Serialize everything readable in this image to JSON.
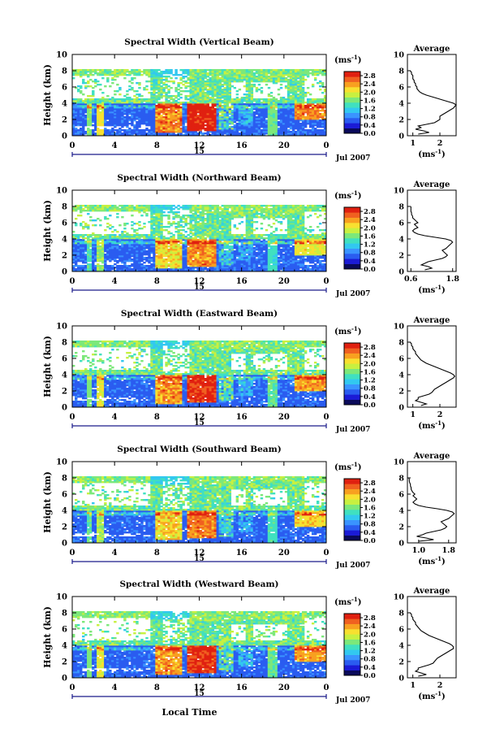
{
  "figure": {
    "xaxis_label": "Local Time",
    "date_label": "Jul 2007",
    "day_label": "15",
    "colorbar_unit_base": "(ms",
    "colorbar_unit_exp": "-1",
    "colorbar_unit_close": ")"
  },
  "chart_data": [
    {
      "type": "heatmap",
      "title": "Spectral Width (Vertical Beam)",
      "ylabel": "Height (km)",
      "xlabel": "Local Time",
      "x_ticks": [
        "0",
        "4",
        "8",
        "12",
        "16",
        "20",
        "0"
      ],
      "y_ticks": [
        "0",
        "2",
        "4",
        "6",
        "8",
        "10"
      ],
      "xlim": [
        0,
        24
      ],
      "ylim": [
        0,
        10
      ],
      "colorbar": {
        "unit": "(ms-1)",
        "ticks": [
          "0.0",
          "0.4",
          "0.8",
          "1.2",
          "1.6",
          "2.0",
          "2.4",
          "2.8"
        ],
        "range": [
          0,
          3.0
        ],
        "colors": [
          "#0a0a5a",
          "#1b1bd6",
          "#2a5cf0",
          "#3a94ff",
          "#32c8f0",
          "#40e0c0",
          "#7ce87a",
          "#c8f040",
          "#f8e030",
          "#f8a020",
          "#f06020",
          "#e02010"
        ]
      },
      "profile": {
        "title": "Average",
        "xlabel": "(ms-1)",
        "x_ticks": [
          "1",
          "2"
        ],
        "x_tick_values": [
          1,
          2
        ],
        "xlim": [
          0.8,
          2.6
        ],
        "ylim": [
          0,
          10
        ],
        "heights": [
          0.2,
          0.4,
          0.6,
          0.8,
          1.0,
          1.2,
          1.4,
          1.6,
          1.8,
          2.0,
          2.2,
          2.4,
          2.6,
          2.8,
          3.0,
          3.2,
          3.4,
          3.6,
          3.8,
          4.0,
          4.2,
          4.4,
          4.6,
          4.8,
          5.0,
          5.2,
          5.4,
          5.6,
          5.8,
          6.0,
          6.2,
          6.4,
          6.6,
          6.8,
          7.0,
          7.2,
          7.4,
          7.6,
          7.8,
          8.0
        ],
        "values": [
          1.2,
          1.6,
          1.4,
          1.1,
          1.3,
          1.2,
          1.5,
          1.8,
          1.9,
          2.0,
          2.0,
          2.0,
          2.1,
          2.2,
          2.3,
          2.4,
          2.5,
          2.55,
          2.6,
          2.5,
          2.3,
          2.1,
          1.9,
          1.7,
          1.5,
          1.35,
          1.25,
          1.2,
          1.15,
          1.15,
          1.1,
          1.1,
          1.05,
          1.05,
          1.0,
          1.0,
          1.0,
          0.95,
          0.95,
          0.9
        ]
      }
    },
    {
      "type": "heatmap",
      "title": "Spectral Width (Northward Beam)",
      "ylabel": "Height (km)",
      "xlabel": "Local Time",
      "x_ticks": [
        "0",
        "4",
        "8",
        "12",
        "16",
        "20",
        "0"
      ],
      "y_ticks": [
        "0",
        "2",
        "4",
        "6",
        "8",
        "10"
      ],
      "xlim": [
        0,
        24
      ],
      "ylim": [
        0,
        10
      ],
      "colorbar": {
        "unit": "(ms-1)",
        "ticks": [
          "0.0",
          "0.4",
          "0.8",
          "1.2",
          "1.6",
          "2.0",
          "2.4",
          "2.8"
        ],
        "range": [
          0,
          3.0
        ],
        "colors": [
          "#0a0a5a",
          "#1b1bd6",
          "#2a5cf0",
          "#3a94ff",
          "#32c8f0",
          "#40e0c0",
          "#7ce87a",
          "#c8f040",
          "#f8e030",
          "#f8a020",
          "#f06020",
          "#e02010"
        ]
      },
      "profile": {
        "title": "Average",
        "xlabel": "(ms-1)",
        "x_ticks": [
          "0.6",
          "1.8"
        ],
        "x_tick_values": [
          0.6,
          1.8
        ],
        "xlim": [
          0.5,
          1.9
        ],
        "ylim": [
          0,
          10
        ],
        "heights": [
          0.2,
          0.4,
          0.6,
          0.8,
          1.0,
          1.2,
          1.4,
          1.6,
          1.8,
          2.0,
          2.2,
          2.4,
          2.6,
          2.8,
          3.0,
          3.2,
          3.4,
          3.6,
          3.8,
          4.0,
          4.2,
          4.4,
          4.6,
          4.8,
          5.0,
          5.2,
          5.4,
          5.6,
          5.8,
          6.0,
          6.2,
          6.4,
          6.6,
          6.8,
          7.0,
          7.2,
          7.4,
          7.6,
          7.8,
          8.0
        ],
        "values": [
          1.0,
          1.2,
          1.1,
          0.9,
          1.0,
          1.1,
          1.3,
          1.5,
          1.6,
          1.65,
          1.6,
          1.55,
          1.5,
          1.6,
          1.65,
          1.7,
          1.75,
          1.8,
          1.75,
          1.6,
          1.3,
          1.0,
          0.8,
          0.7,
          0.65,
          0.7,
          0.8,
          0.75,
          0.7,
          0.8,
          0.75,
          0.7,
          0.65,
          0.65,
          0.62,
          0.62,
          0.6,
          0.6,
          0.6,
          0.6
        ]
      }
    },
    {
      "type": "heatmap",
      "title": "Spectral Width (Eastward Beam)",
      "ylabel": "Height (km)",
      "xlabel": "Local Time",
      "x_ticks": [
        "0",
        "4",
        "8",
        "12",
        "16",
        "20",
        "0"
      ],
      "y_ticks": [
        "0",
        "2",
        "4",
        "6",
        "8",
        "10"
      ],
      "xlim": [
        0,
        24
      ],
      "ylim": [
        0,
        10
      ],
      "colorbar": {
        "unit": "(ms-1)",
        "ticks": [
          "0.0",
          "0.4",
          "0.8",
          "1.2",
          "1.6",
          "2.0",
          "2.4",
          "2.8"
        ],
        "range": [
          0,
          3.0
        ],
        "colors": [
          "#0a0a5a",
          "#1b1bd6",
          "#2a5cf0",
          "#3a94ff",
          "#32c8f0",
          "#40e0c0",
          "#7ce87a",
          "#c8f040",
          "#f8e030",
          "#f8a020",
          "#f06020",
          "#e02010"
        ]
      },
      "profile": {
        "title": "Average",
        "xlabel": "(ms-1)",
        "x_ticks": [
          "1",
          "2"
        ],
        "x_tick_values": [
          1,
          2
        ],
        "xlim": [
          0.8,
          2.6
        ],
        "ylim": [
          0,
          10
        ],
        "heights": [
          0.2,
          0.4,
          0.6,
          0.8,
          1.0,
          1.2,
          1.4,
          1.6,
          1.8,
          2.0,
          2.2,
          2.4,
          2.6,
          2.8,
          3.0,
          3.2,
          3.4,
          3.6,
          3.8,
          4.0,
          4.2,
          4.4,
          4.6,
          4.8,
          5.0,
          5.2,
          5.4,
          5.6,
          5.8,
          6.0,
          6.2,
          6.4,
          6.6,
          6.8,
          7.0,
          7.2,
          7.4,
          7.6,
          7.8,
          8.0
        ],
        "values": [
          1.3,
          1.5,
          1.3,
          1.1,
          1.2,
          1.2,
          1.4,
          1.6,
          1.7,
          1.75,
          1.8,
          1.9,
          2.0,
          2.1,
          2.2,
          2.3,
          2.4,
          2.5,
          2.55,
          2.5,
          2.4,
          2.25,
          2.1,
          1.95,
          1.8,
          1.65,
          1.5,
          1.4,
          1.3,
          1.25,
          1.2,
          1.15,
          1.1,
          1.1,
          1.05,
          1.0,
          1.0,
          0.95,
          0.95,
          0.9
        ]
      }
    },
    {
      "type": "heatmap",
      "title": "Spectral Width (Southward Beam)",
      "ylabel": "Height (km)",
      "xlabel": "Local Time",
      "x_ticks": [
        "0",
        "4",
        "8",
        "12",
        "16",
        "20",
        "0"
      ],
      "y_ticks": [
        "0",
        "2",
        "4",
        "6",
        "8",
        "10"
      ],
      "xlim": [
        0,
        24
      ],
      "ylim": [
        0,
        10
      ],
      "colorbar": {
        "unit": "(ms-1)",
        "ticks": [
          "0.0",
          "0.4",
          "0.8",
          "1.2",
          "1.6",
          "2.0",
          "2.4",
          "2.8"
        ],
        "range": [
          0,
          3.0
        ],
        "colors": [
          "#0a0a5a",
          "#1b1bd6",
          "#2a5cf0",
          "#3a94ff",
          "#32c8f0",
          "#40e0c0",
          "#7ce87a",
          "#c8f040",
          "#f8e030",
          "#f8a020",
          "#f06020",
          "#e02010"
        ]
      },
      "profile": {
        "title": "Average",
        "xlabel": "(ms-1)",
        "x_ticks": [
          "1.0",
          "1.8"
        ],
        "x_tick_values": [
          1.0,
          1.8
        ],
        "xlim": [
          0.7,
          2.0
        ],
        "ylim": [
          0,
          10
        ],
        "heights": [
          0.2,
          0.4,
          0.6,
          0.8,
          1.0,
          1.2,
          1.4,
          1.6,
          1.8,
          2.0,
          2.2,
          2.4,
          2.6,
          2.8,
          3.0,
          3.2,
          3.4,
          3.6,
          3.8,
          4.0,
          4.2,
          4.4,
          4.6,
          4.8,
          5.0,
          5.2,
          5.4,
          5.6,
          5.8,
          6.0,
          6.2,
          6.4,
          6.6,
          6.8,
          7.0,
          7.2,
          7.4,
          7.6,
          7.8,
          8.0
        ],
        "values": [
          1.0,
          1.4,
          1.2,
          0.95,
          1.1,
          1.2,
          1.4,
          1.6,
          1.7,
          1.75,
          1.7,
          1.65,
          1.6,
          1.7,
          1.8,
          1.85,
          1.9,
          1.95,
          1.9,
          1.75,
          1.5,
          1.2,
          1.0,
          0.9,
          0.85,
          0.9,
          0.95,
          0.9,
          0.85,
          0.9,
          0.85,
          0.82,
          0.8,
          0.8,
          0.78,
          0.78,
          0.76,
          0.75,
          0.75,
          0.74
        ]
      }
    },
    {
      "type": "heatmap",
      "title": "Spectral Width (Westward Beam)",
      "ylabel": "Height (km)",
      "xlabel": "Local Time",
      "x_ticks": [
        "0",
        "4",
        "8",
        "12",
        "16",
        "20",
        "0"
      ],
      "y_ticks": [
        "0",
        "2",
        "4",
        "6",
        "8",
        "10"
      ],
      "xlim": [
        0,
        24
      ],
      "ylim": [
        0,
        10
      ],
      "colorbar": {
        "unit": "(ms-1)",
        "ticks": [
          "0.0",
          "0.4",
          "0.8",
          "1.2",
          "1.6",
          "2.0",
          "2.4",
          "2.8"
        ],
        "range": [
          0,
          3.0
        ],
        "colors": [
          "#0a0a5a",
          "#1b1bd6",
          "#2a5cf0",
          "#3a94ff",
          "#32c8f0",
          "#40e0c0",
          "#7ce87a",
          "#c8f040",
          "#f8e030",
          "#f8a020",
          "#f06020",
          "#e02010"
        ]
      },
      "profile": {
        "title": "Average",
        "xlabel": "(ms-1)",
        "x_ticks": [
          "1",
          "2"
        ],
        "x_tick_values": [
          1,
          2
        ],
        "xlim": [
          0.8,
          2.6
        ],
        "ylim": [
          0,
          10
        ],
        "heights": [
          0.2,
          0.4,
          0.6,
          0.8,
          1.0,
          1.2,
          1.4,
          1.6,
          1.8,
          2.0,
          2.2,
          2.4,
          2.6,
          2.8,
          3.0,
          3.2,
          3.4,
          3.6,
          3.8,
          4.0,
          4.2,
          4.4,
          4.6,
          4.8,
          5.0,
          5.2,
          5.4,
          5.6,
          5.8,
          6.0,
          6.2,
          6.4,
          6.6,
          6.8,
          7.0,
          7.2,
          7.4,
          7.6,
          7.8,
          8.0
        ],
        "values": [
          1.2,
          1.5,
          1.3,
          1.1,
          1.2,
          1.2,
          1.4,
          1.6,
          1.75,
          1.8,
          1.85,
          1.9,
          2.0,
          2.1,
          2.2,
          2.3,
          2.4,
          2.5,
          2.5,
          2.45,
          2.35,
          2.2,
          2.05,
          1.9,
          1.75,
          1.6,
          1.5,
          1.4,
          1.3,
          1.25,
          1.2,
          1.15,
          1.1,
          1.1,
          1.05,
          1.0,
          1.0,
          0.95,
          0.95,
          0.9
        ]
      }
    }
  ]
}
